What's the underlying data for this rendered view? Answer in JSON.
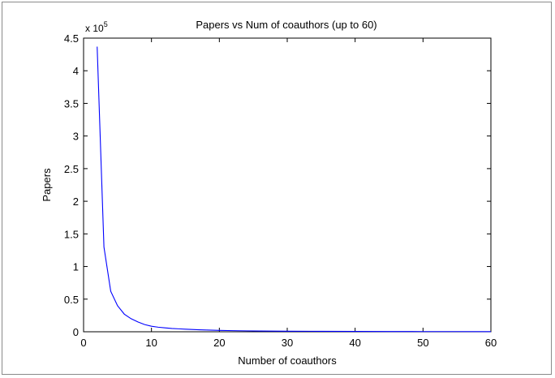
{
  "chart_data": {
    "type": "line",
    "title": "Papers vs Num of coauthors (up to 60)",
    "xlabel": "Number of coauthors",
    "ylabel": "Papers",
    "y_scale_label": {
      "base": "x 10",
      "exponent": "5"
    },
    "xlim": [
      0,
      60
    ],
    "ylim": [
      0,
      4.5
    ],
    "y_multiplier": 100000,
    "x_ticks": [
      "0",
      "10",
      "20",
      "30",
      "40",
      "50",
      "60"
    ],
    "y_ticks": [
      "0",
      "0.5",
      "1",
      "1.5",
      "2",
      "2.5",
      "3",
      "3.5",
      "4",
      "4.5"
    ],
    "grid": false,
    "line_color": "#0000ff",
    "series": [
      {
        "x": [
          2,
          3,
          4,
          5,
          6,
          7,
          8,
          9,
          10,
          11,
          12,
          13,
          14,
          15,
          16,
          17,
          18,
          19,
          20,
          22,
          24,
          26,
          28,
          30,
          35,
          40,
          45,
          50,
          55,
          60
        ],
        "values": [
          4.37,
          1.3,
          0.62,
          0.4,
          0.27,
          0.2,
          0.15,
          0.11,
          0.085,
          0.07,
          0.06,
          0.05,
          0.045,
          0.04,
          0.035,
          0.03,
          0.027,
          0.024,
          0.021,
          0.017,
          0.014,
          0.012,
          0.01,
          0.009,
          0.007,
          0.005,
          0.004,
          0.003,
          0.003,
          0.002
        ]
      }
    ]
  }
}
